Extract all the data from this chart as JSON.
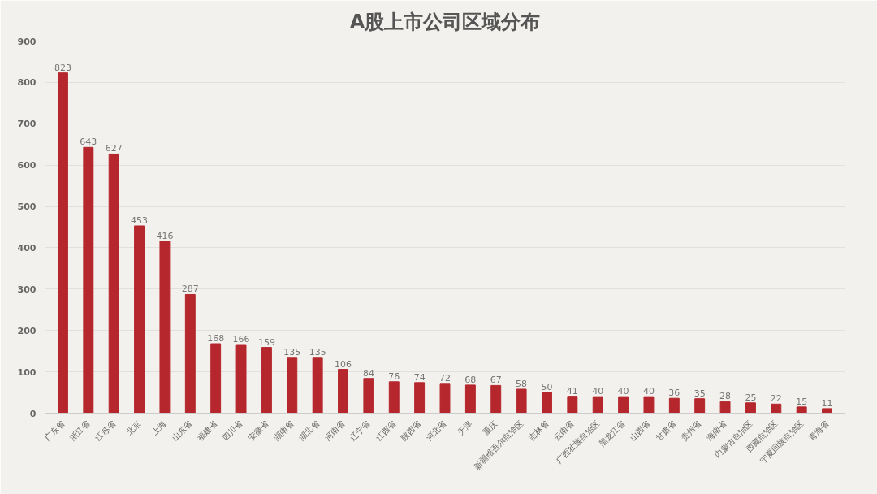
{
  "chart_data": {
    "type": "bar",
    "title": "A股上市公司区域分布",
    "categories": [
      "广东省",
      "浙江省",
      "江苏省",
      "北京",
      "上海",
      "山东省",
      "福建省",
      "四川省",
      "安徽省",
      "湖南省",
      "湖北省",
      "河南省",
      "辽宁省",
      "江西省",
      "陕西省",
      "河北省",
      "天津",
      "重庆",
      "新疆维吾尔自治区",
      "吉林省",
      "云南省",
      "广西壮族自治区",
      "黑龙江省",
      "山西省",
      "甘肃省",
      "贵州省",
      "海南省",
      "内蒙古自治区",
      "西藏自治区",
      "宁夏回族自治区",
      "青海省"
    ],
    "values": [
      823,
      643,
      627,
      453,
      416,
      287,
      168,
      166,
      159,
      135,
      135,
      106,
      84,
      76,
      74,
      72,
      68,
      67,
      58,
      50,
      41,
      40,
      40,
      40,
      36,
      35,
      28,
      25,
      22,
      15,
      11
    ],
    "color": "#b5272d",
    "ylim": [
      0,
      900
    ],
    "yticks": [
      0,
      100,
      200,
      300,
      400,
      500,
      600,
      700,
      800,
      900
    ],
    "grid": "y",
    "data_labels": true
  }
}
